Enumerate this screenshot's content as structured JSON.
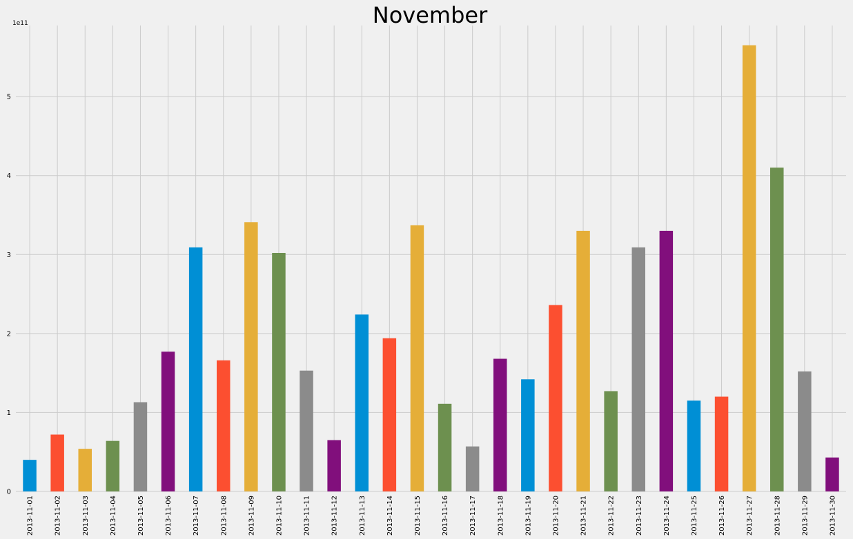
{
  "chart_data": {
    "type": "bar",
    "title": "November",
    "xlabel": "",
    "ylabel": "",
    "y_multiplier_label": "1e11",
    "ylim": [
      0,
      5.9
    ],
    "yticks": [
      0,
      1,
      2,
      3,
      4,
      5
    ],
    "grid": true,
    "legend": "none",
    "palette": [
      "#008fd5",
      "#fc4f30",
      "#e5ae38",
      "#6d904f",
      "#8b8b8b",
      "#810f7c"
    ],
    "categories": [
      "2013-11-01",
      "2013-11-02",
      "2013-11-03",
      "2013-11-04",
      "2013-11-05",
      "2013-11-06",
      "2013-11-07",
      "2013-11-08",
      "2013-11-09",
      "2013-11-10",
      "2013-11-11",
      "2013-11-12",
      "2013-11-13",
      "2013-11-14",
      "2013-11-15",
      "2013-11-16",
      "2013-11-17",
      "2013-11-18",
      "2013-11-19",
      "2013-11-20",
      "2013-11-21",
      "2013-11-22",
      "2013-11-23",
      "2013-11-24",
      "2013-11-25",
      "2013-11-26",
      "2013-11-27",
      "2013-11-28",
      "2013-11-29",
      "2013-11-30"
    ],
    "values": [
      0.4,
      0.72,
      0.54,
      0.64,
      1.13,
      1.77,
      3.09,
      1.66,
      3.41,
      3.02,
      1.53,
      0.65,
      2.24,
      1.94,
      3.37,
      1.11,
      0.57,
      1.68,
      1.42,
      2.36,
      3.3,
      1.27,
      3.09,
      3.3,
      1.15,
      1.2,
      5.65,
      4.1,
      1.52,
      0.43
    ]
  }
}
